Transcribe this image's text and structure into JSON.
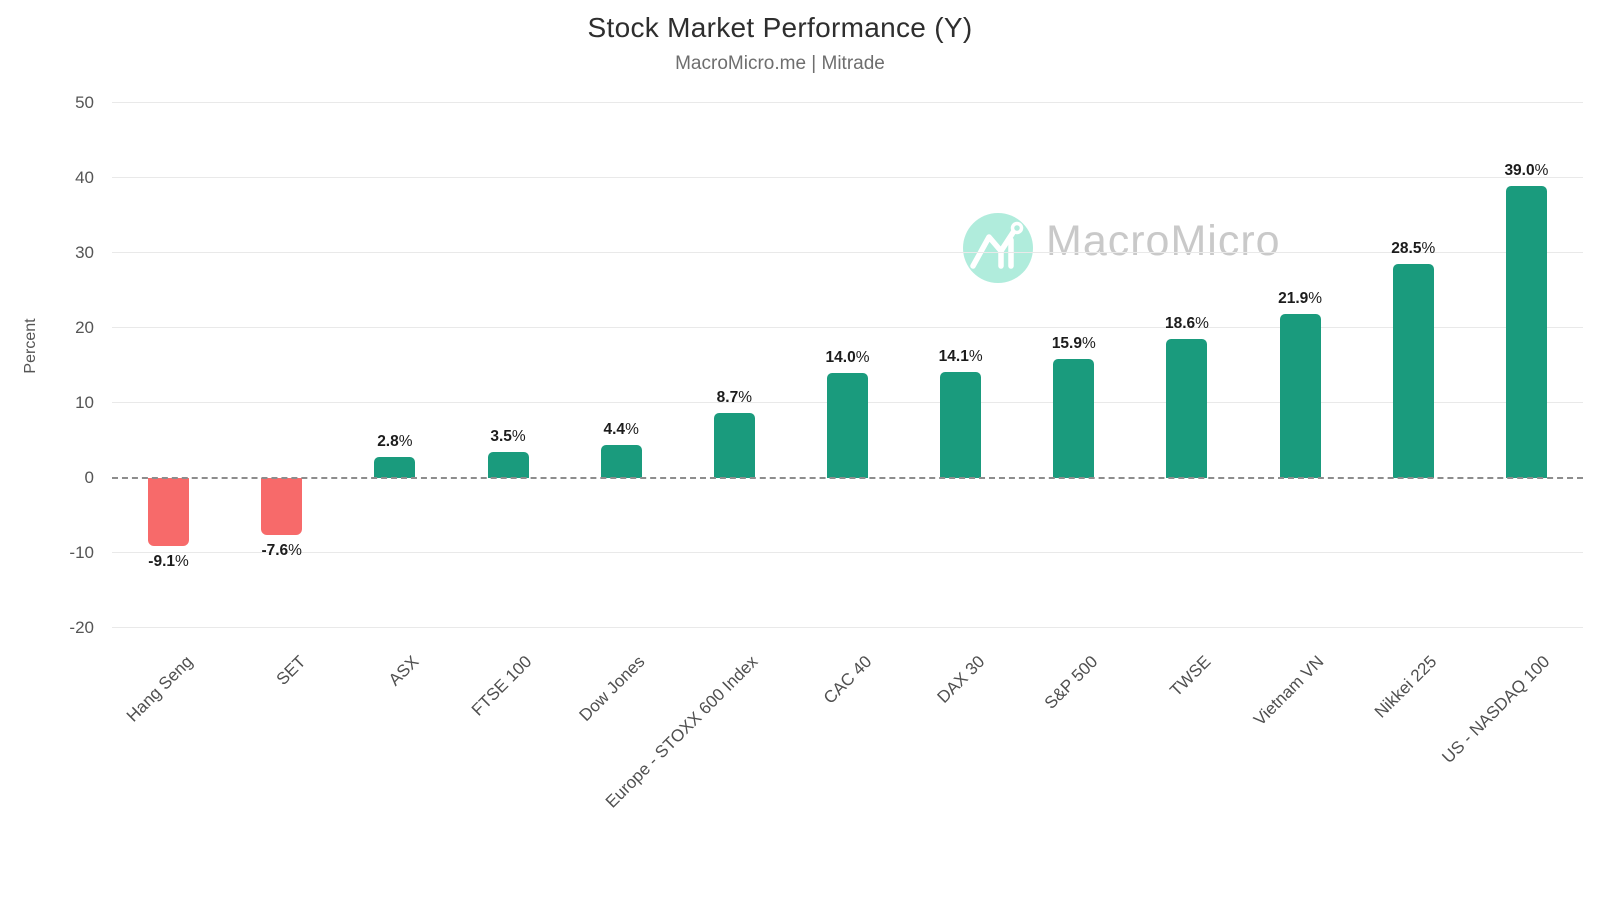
{
  "header": {
    "title": "Stock Market Performance  (Y)",
    "subtitle": "MacroMicro.me | Mitrade"
  },
  "watermark": {
    "brand_text": "MacroMicro",
    "logo": "macromicro-logo-icon"
  },
  "colors": {
    "positive_bar": "#1a9b7d",
    "negative_bar": "#f76a6a",
    "gridline": "#e9e9e9",
    "zero_line": "#8d8d8d",
    "tick_text": "#555555",
    "value_label": "#1c1c1c",
    "watermark_text": "#c9c9c9",
    "logo_circle": "#b0ecdc"
  },
  "chart_data": {
    "type": "bar",
    "title": "Stock Market Performance  (Y)",
    "subtitle": "MacroMicro.me | Mitrade",
    "xlabel": "",
    "ylabel": "Percent",
    "ylim": [
      -20,
      50
    ],
    "yticks": [
      50,
      40,
      30,
      20,
      10,
      0,
      -10,
      -20
    ],
    "grid": true,
    "zero_line_style": "dashed",
    "categories": [
      "Hang Seng",
      "SET",
      "ASX",
      "FTSE 100",
      "Dow Jones",
      "Europe - STOXX 600 Index",
      "CAC 40",
      "DAX 30",
      "S&P 500",
      "TWSE",
      "Vietnam VN",
      "Nikkei 225",
      "US - NASDAQ 100"
    ],
    "values": [
      -9.1,
      -7.6,
      2.8,
      3.5,
      4.4,
      8.7,
      14.0,
      14.1,
      15.9,
      18.6,
      21.9,
      28.5,
      39.0
    ],
    "value_labels": [
      "-9.1%",
      "-7.6%",
      "2.8%",
      "3.5%",
      "4.4%",
      "8.7%",
      "14.0%",
      "14.1%",
      "15.9%",
      "18.6%",
      "21.9%",
      "28.5%",
      "39.0%"
    ]
  }
}
